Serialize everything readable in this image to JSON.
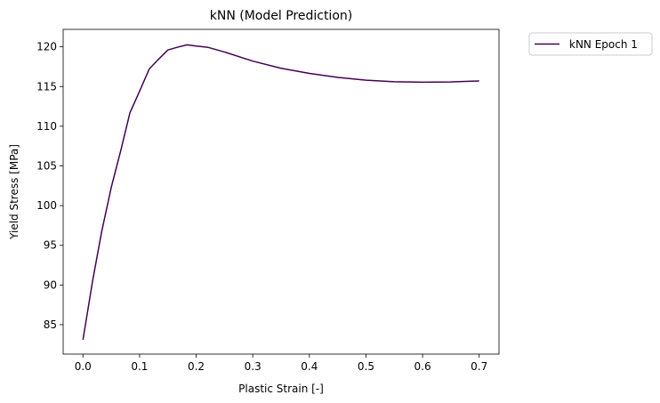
{
  "chart_data": {
    "type": "line",
    "title": "kNN (Model Prediction)",
    "xlabel": "Plastic Strain [-]",
    "ylabel": "Yield Stress [MPa]",
    "xlim": [
      -0.035,
      0.735
    ],
    "ylim": [
      81.3,
      122.2
    ],
    "xticks": [
      0.0,
      0.1,
      0.2,
      0.3,
      0.4,
      0.5,
      0.6,
      0.7
    ],
    "xtick_labels": [
      "0.0",
      "0.1",
      "0.2",
      "0.3",
      "0.4",
      "0.5",
      "0.6",
      "0.7"
    ],
    "yticks": [
      85,
      90,
      95,
      100,
      105,
      110,
      115,
      120
    ],
    "ytick_labels": [
      "85",
      "90",
      "95",
      "100",
      "105",
      "110",
      "115",
      "120"
    ],
    "grid": false,
    "legend_position": "outside upper right",
    "series": [
      {
        "name": "kNN Epoch 1",
        "color": "#440154",
        "x": [
          0.0,
          0.017,
          0.033,
          0.05,
          0.067,
          0.083,
          0.1,
          0.117,
          0.133,
          0.15,
          0.167,
          0.184,
          0.2,
          0.22,
          0.25,
          0.3,
          0.35,
          0.4,
          0.45,
          0.5,
          0.55,
          0.6,
          0.65,
          0.7
        ],
        "y": [
          83.1,
          90.5,
          96.7,
          102.3,
          107.0,
          111.7,
          114.4,
          117.2,
          118.4,
          119.6,
          119.95,
          120.25,
          120.1,
          119.95,
          119.35,
          118.2,
          117.3,
          116.65,
          116.15,
          115.8,
          115.6,
          115.55,
          115.58,
          115.7
        ]
      }
    ]
  }
}
